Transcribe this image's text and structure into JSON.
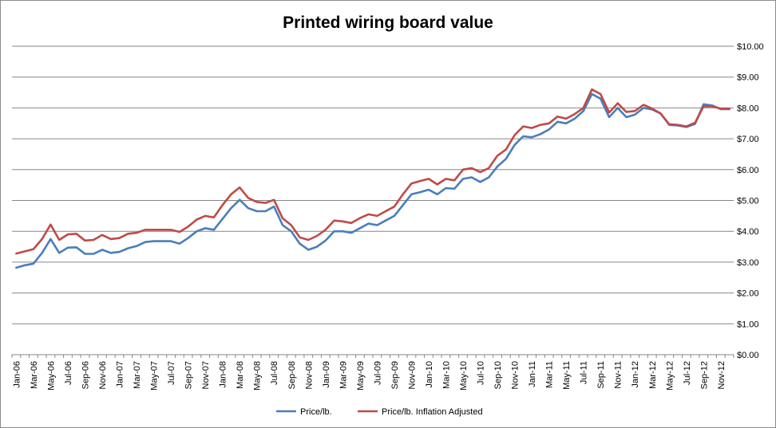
{
  "chart_data": {
    "type": "line",
    "title": "Printed wiring board value",
    "xlabel": "",
    "ylabel": "",
    "ylim": [
      0,
      10
    ],
    "y_ticks": [
      "$0.00",
      "$1.00",
      "$2.00",
      "$3.00",
      "$4.00",
      "$5.00",
      "$6.00",
      "$7.00",
      "$8.00",
      "$9.00",
      "$10.00"
    ],
    "grid": true,
    "legend_position": "bottom",
    "x": [
      "Jan-06",
      "Feb-06",
      "Mar-06",
      "Apr-06",
      "May-06",
      "Jun-06",
      "Jul-06",
      "Aug-06",
      "Sep-06",
      "Oct-06",
      "Nov-06",
      "Dec-06",
      "Jan-07",
      "Feb-07",
      "Mar-07",
      "Apr-07",
      "May-07",
      "Jun-07",
      "Jul-07",
      "Aug-07",
      "Sep-07",
      "Oct-07",
      "Nov-07",
      "Dec-07",
      "Jan-08",
      "Feb-08",
      "Mar-08",
      "Apr-08",
      "May-08",
      "Jun-08",
      "Jul-08",
      "Aug-08",
      "Sep-08",
      "Oct-08",
      "Nov-08",
      "Dec-08",
      "Jan-09",
      "Feb-09",
      "Mar-09",
      "Apr-09",
      "May-09",
      "Jun-09",
      "Jul-09",
      "Aug-09",
      "Sep-09",
      "Oct-09",
      "Nov-09",
      "Dec-09",
      "Jan-10",
      "Feb-10",
      "Mar-10",
      "Apr-10",
      "May-10",
      "Jun-10",
      "Jul-10",
      "Aug-10",
      "Sep-10",
      "Oct-10",
      "Nov-10",
      "Dec-10",
      "Jan-11",
      "Feb-11",
      "Mar-11",
      "Apr-11",
      "May-11",
      "Jun-11",
      "Jul-11",
      "Aug-11",
      "Sep-11",
      "Oct-11",
      "Nov-11",
      "Dec-11",
      "Jan-12",
      "Feb-12",
      "Mar-12",
      "Apr-12",
      "May-12",
      "Jun-12",
      "Jul-12",
      "Aug-12",
      "Sep-12",
      "Oct-12",
      "Nov-12",
      "Dec-12"
    ],
    "x_tick_labels": [
      "Jan-06",
      "Mar-06",
      "May-06",
      "Jul-06",
      "Sep-06",
      "Nov-06",
      "Jan-07",
      "Mar-07",
      "May-07",
      "Jul-07",
      "Sep-07",
      "Nov-07",
      "Jan-08",
      "Mar-08",
      "May-08",
      "Jul-08",
      "Sep-08",
      "Nov-08",
      "Jan-09",
      "Mar-09",
      "May-09",
      "Jul-09",
      "Sep-09",
      "Nov-09",
      "Jan-10",
      "Mar-10",
      "May-10",
      "Jul-10",
      "Sep-10",
      "Nov-10",
      "Jan-11",
      "Mar-11",
      "May-11",
      "Jul-11",
      "Sep-11",
      "Nov-11",
      "Jan-12",
      "Mar-12",
      "May-12",
      "Jul-12",
      "Sep-12",
      "Nov-12"
    ],
    "series": [
      {
        "name": "Price/lb.",
        "color": "#4a7ebb",
        "values": [
          2.82,
          2.9,
          2.95,
          3.3,
          3.75,
          3.3,
          3.47,
          3.48,
          3.27,
          3.27,
          3.4,
          3.3,
          3.33,
          3.45,
          3.52,
          3.65,
          3.68,
          3.68,
          3.68,
          3.6,
          3.78,
          4.0,
          4.1,
          4.05,
          4.4,
          4.75,
          5.02,
          4.75,
          4.65,
          4.65,
          4.8,
          4.2,
          4.0,
          3.6,
          3.4,
          3.5,
          3.7,
          4.0,
          4.0,
          3.95,
          4.1,
          4.25,
          4.2,
          4.35,
          4.5,
          4.85,
          5.2,
          5.27,
          5.35,
          5.2,
          5.4,
          5.38,
          5.7,
          5.75,
          5.6,
          5.75,
          6.1,
          6.35,
          6.8,
          7.08,
          7.05,
          7.15,
          7.3,
          7.55,
          7.5,
          7.65,
          7.9,
          8.45,
          8.3,
          7.7,
          8.0,
          7.7,
          7.78,
          8.0,
          7.95,
          7.82,
          7.45,
          7.43,
          7.38,
          7.48,
          8.12,
          8.08,
          7.96,
          7.96
        ]
      },
      {
        "name": "Price/lb. Inflation Adjusted",
        "color": "#be4b48",
        "values": [
          3.28,
          3.35,
          3.42,
          3.75,
          4.22,
          3.72,
          3.9,
          3.92,
          3.7,
          3.72,
          3.88,
          3.75,
          3.78,
          3.92,
          3.95,
          4.05,
          4.05,
          4.05,
          4.05,
          3.98,
          4.15,
          4.38,
          4.5,
          4.45,
          4.85,
          5.2,
          5.42,
          5.08,
          4.95,
          4.92,
          5.02,
          4.42,
          4.2,
          3.8,
          3.72,
          3.85,
          4.05,
          4.35,
          4.32,
          4.27,
          4.43,
          4.55,
          4.5,
          4.65,
          4.8,
          5.2,
          5.55,
          5.63,
          5.7,
          5.52,
          5.7,
          5.65,
          6.0,
          6.05,
          5.92,
          6.05,
          6.45,
          6.65,
          7.12,
          7.4,
          7.35,
          7.45,
          7.5,
          7.72,
          7.65,
          7.8,
          8.0,
          8.6,
          8.45,
          7.85,
          8.15,
          7.87,
          7.9,
          8.1,
          7.98,
          7.82,
          7.47,
          7.45,
          7.4,
          7.52,
          8.05,
          8.05,
          7.98,
          7.98
        ]
      }
    ]
  }
}
